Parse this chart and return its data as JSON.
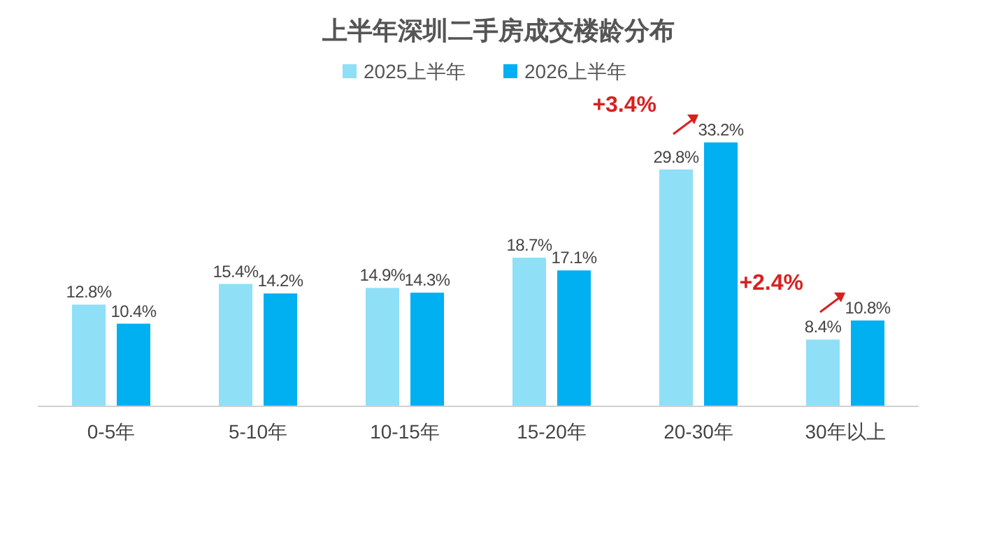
{
  "chart_data": {
    "type": "bar",
    "title": "上半年深圳二手房成交楼龄分布",
    "categories": [
      "0-5年",
      "5-10年",
      "10-15年",
      "15-20年",
      "20-30年",
      "30年以上"
    ],
    "series": [
      {
        "name": "2025上半年",
        "color": "#8fdff7",
        "values": [
          12.8,
          15.4,
          14.9,
          18.7,
          29.8,
          8.4
        ],
        "value_labels": [
          "12.8%",
          "15.4%",
          "14.9%",
          "18.7%",
          "29.8%",
          "8.4%"
        ]
      },
      {
        "name": "2026上半年",
        "color": "#00b0f0",
        "values": [
          10.4,
          14.2,
          14.3,
          17.1,
          33.2,
          10.8
        ],
        "value_labels": [
          "10.4%",
          "14.2%",
          "14.3%",
          "17.1%",
          "33.2%",
          "10.8%"
        ]
      }
    ],
    "legend": "top",
    "annotations": [
      {
        "text": "+3.4%",
        "x": "20-30年",
        "y": 33.2
      },
      {
        "text": "+2.4%",
        "x": "30年以上",
        "y": 10.8
      }
    ]
  }
}
